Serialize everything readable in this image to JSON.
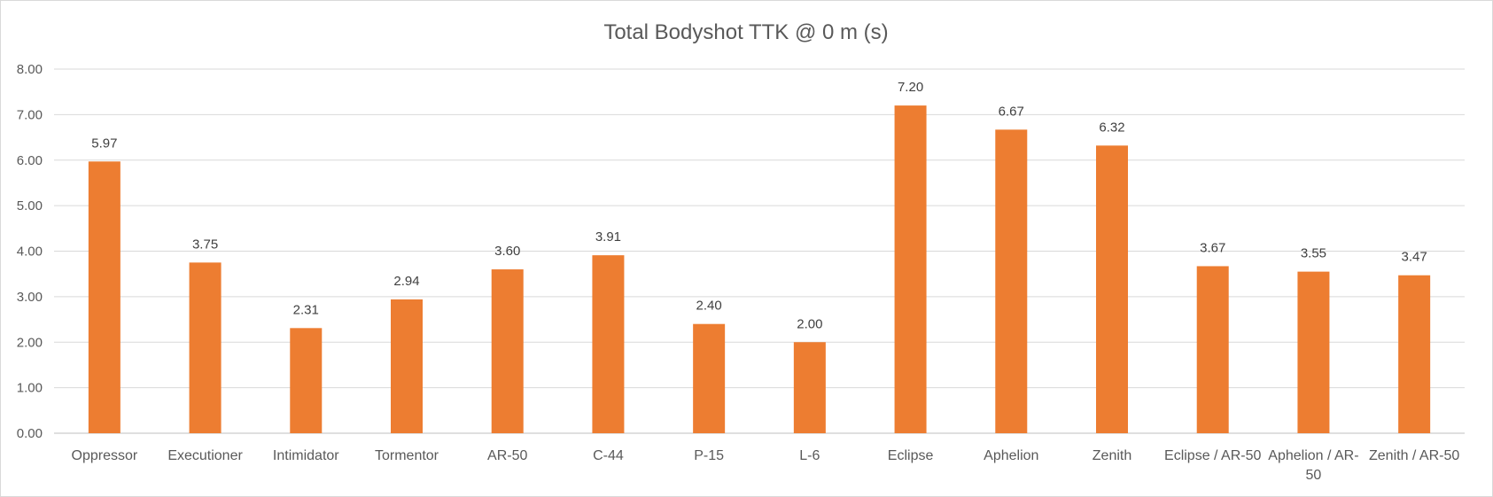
{
  "chart_data": {
    "type": "bar",
    "title": "Total Bodyshot TTK @ 0 m (s)",
    "xlabel": "",
    "ylabel": "",
    "ylim": [
      0,
      8
    ],
    "yticks": [
      "0.00",
      "1.00",
      "2.00",
      "3.00",
      "4.00",
      "5.00",
      "6.00",
      "7.00",
      "8.00"
    ],
    "grid": true,
    "legend": "none",
    "bar_color": "#ED7D31",
    "categories": [
      [
        "Oppressor"
      ],
      [
        "Executioner"
      ],
      [
        "Intimidator"
      ],
      [
        "Tormentor"
      ],
      [
        "AR-50"
      ],
      [
        "C-44"
      ],
      [
        "P-15"
      ],
      [
        "L-6"
      ],
      [
        "Eclipse"
      ],
      [
        "Aphelion"
      ],
      [
        "Zenith"
      ],
      [
        "Eclipse / AR-50"
      ],
      [
        "Aphelion / AR-",
        "50"
      ],
      [
        "Zenith / AR-50"
      ]
    ],
    "values": [
      5.97,
      3.75,
      2.31,
      2.94,
      3.6,
      3.91,
      2.4,
      2.0,
      7.2,
      6.67,
      6.32,
      3.67,
      3.55,
      3.47
    ],
    "data_labels": [
      "5.97",
      "3.75",
      "2.31",
      "2.94",
      "3.60",
      "3.91",
      "2.40",
      "2.00",
      "7.20",
      "6.67",
      "6.32",
      "3.67",
      "3.55",
      "3.47"
    ]
  }
}
